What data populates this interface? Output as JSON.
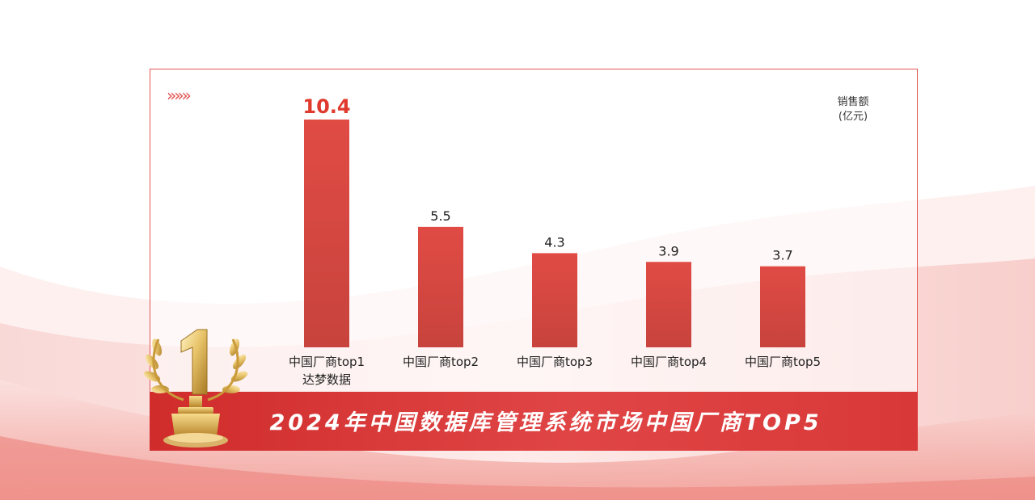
{
  "chart_data": {
    "type": "bar",
    "title": "2024年中国数据库管理系统市场中国厂商TOP5",
    "ylabel": "销售额(亿元)",
    "unit_line1": "销售额",
    "unit_line2": "(亿元)",
    "categories": [
      [
        "中国厂商top1",
        "达梦数据"
      ],
      [
        "中国厂商top2"
      ],
      [
        "中国厂商top3"
      ],
      [
        "中国厂商top4"
      ],
      [
        "中国厂商top5"
      ]
    ],
    "values": [
      10.4,
      5.5,
      4.3,
      3.9,
      3.7
    ],
    "value_labels": [
      "10.4",
      "5.5",
      "4.3",
      "3.9",
      "3.7"
    ],
    "highlight_index": 0,
    "grid": false,
    "colors": {
      "bar": "#d9463f",
      "bar_dark": "#c4403a",
      "highlight_label": "#e03a2e",
      "label": "#222222"
    }
  },
  "decoration": {
    "chevrons": "»»»",
    "trophy_icon": "gold-trophy-rank-1"
  }
}
